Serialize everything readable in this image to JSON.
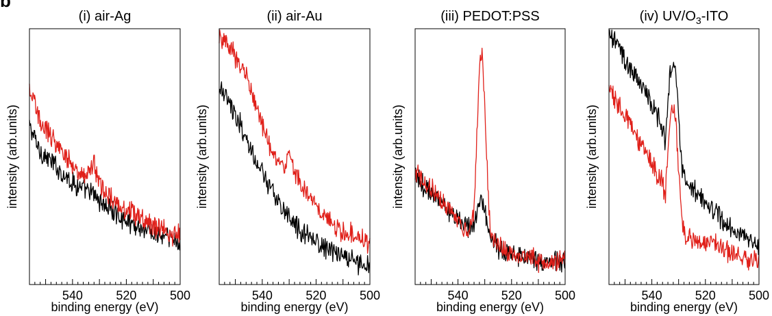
{
  "panel_marker": "b",
  "chart_data": [
    {
      "type": "line",
      "title": "(i) air-Ag",
      "xlabel": "binding energy (eV)",
      "ylabel": "intensity (arb.units)",
      "xlim": [
        556,
        500
      ],
      "ylim": [
        0,
        1
      ],
      "xticks": [
        "540",
        "520",
        "500"
      ],
      "series": [
        {
          "color": "#000000",
          "x": [
            556,
            552,
            548,
            544,
            540,
            536,
            532,
            528,
            524,
            520,
            516,
            512,
            508,
            504,
            500
          ],
          "y": [
            0.62,
            0.52,
            0.48,
            0.44,
            0.4,
            0.37,
            0.35,
            0.31,
            0.28,
            0.25,
            0.23,
            0.21,
            0.19,
            0.18,
            0.16
          ]
        },
        {
          "color": "#e0201a",
          "x": [
            556,
            552,
            548,
            544,
            540,
            536,
            532,
            530,
            528,
            524,
            520,
            516,
            512,
            508,
            504,
            500
          ],
          "y": [
            0.76,
            0.64,
            0.58,
            0.52,
            0.47,
            0.42,
            0.47,
            0.4,
            0.36,
            0.33,
            0.29,
            0.27,
            0.24,
            0.22,
            0.2,
            0.19
          ]
        }
      ]
    },
    {
      "type": "line",
      "title": "(ii) air-Au",
      "xlabel": "binding energy (eV)",
      "ylabel": "intensity (arb.units)",
      "xlim": [
        556,
        500
      ],
      "ylim": [
        0,
        1
      ],
      "xticks": [
        "540",
        "520",
        "500"
      ],
      "series": [
        {
          "color": "#000000",
          "x": [
            556,
            552,
            548,
            544,
            540,
            536,
            532,
            528,
            524,
            520,
            516,
            512,
            508,
            504,
            500
          ],
          "y": [
            0.78,
            0.7,
            0.62,
            0.52,
            0.43,
            0.36,
            0.28,
            0.23,
            0.2,
            0.17,
            0.14,
            0.12,
            0.1,
            0.08,
            0.07
          ]
        },
        {
          "color": "#e0201a",
          "x": [
            556,
            552,
            548,
            544,
            540,
            536,
            532,
            530,
            528,
            524,
            520,
            516,
            512,
            508,
            504,
            500
          ],
          "y": [
            0.97,
            0.92,
            0.86,
            0.76,
            0.62,
            0.52,
            0.46,
            0.52,
            0.43,
            0.36,
            0.31,
            0.26,
            0.22,
            0.2,
            0.18,
            0.16
          ]
        }
      ]
    },
    {
      "type": "line",
      "title": "(iii) PEDOT:PSS",
      "xlabel": "binding energy (eV)",
      "ylabel": "intensity (arb.units)",
      "xlim": [
        556,
        500
      ],
      "ylim": [
        0,
        1
      ],
      "xticks": [
        "540",
        "520",
        "500"
      ],
      "series": [
        {
          "color": "#000000",
          "x": [
            556,
            552,
            548,
            544,
            540,
            536,
            534,
            532,
            531,
            530,
            528,
            524,
            520,
            516,
            512,
            508,
            504,
            500
          ],
          "y": [
            0.42,
            0.38,
            0.34,
            0.3,
            0.26,
            0.22,
            0.23,
            0.32,
            0.34,
            0.28,
            0.18,
            0.14,
            0.12,
            0.11,
            0.1,
            0.09,
            0.09,
            0.08
          ]
        },
        {
          "color": "#e0201a",
          "x": [
            556,
            552,
            548,
            544,
            540,
            536,
            534,
            532,
            531,
            530,
            528,
            524,
            520,
            516,
            512,
            508,
            504,
            500
          ],
          "y": [
            0.44,
            0.39,
            0.35,
            0.3,
            0.25,
            0.2,
            0.3,
            0.85,
            0.91,
            0.7,
            0.2,
            0.14,
            0.12,
            0.11,
            0.1,
            0.09,
            0.09,
            0.09
          ]
        }
      ]
    },
    {
      "type": "line",
      "title": "(iv) UV/O",
      "title_sub": "3",
      "title_tail": "-ITO",
      "xlabel": "binding energy (eV)",
      "ylabel": "intensity (arb.units)",
      "xlim": [
        556,
        500
      ],
      "ylim": [
        0,
        1
      ],
      "xticks": [
        "540",
        "520",
        "500"
      ],
      "series": [
        {
          "color": "#000000",
          "x": [
            556,
            552,
            548,
            544,
            540,
            536,
            535,
            533,
            532,
            531,
            529,
            528,
            524,
            520,
            516,
            512,
            508,
            504,
            500
          ],
          "y": [
            0.99,
            0.92,
            0.85,
            0.78,
            0.71,
            0.61,
            0.55,
            0.84,
            0.86,
            0.82,
            0.48,
            0.41,
            0.36,
            0.32,
            0.28,
            0.24,
            0.21,
            0.18,
            0.16
          ]
        },
        {
          "color": "#e0201a",
          "x": [
            556,
            552,
            548,
            544,
            540,
            536,
            535,
            533,
            532,
            531,
            529,
            528,
            524,
            520,
            516,
            512,
            508,
            504,
            500
          ],
          "y": [
            0.77,
            0.69,
            0.62,
            0.55,
            0.48,
            0.39,
            0.34,
            0.66,
            0.72,
            0.62,
            0.28,
            0.19,
            0.17,
            0.16,
            0.15,
            0.13,
            0.12,
            0.1,
            0.09
          ]
        }
      ]
    }
  ]
}
